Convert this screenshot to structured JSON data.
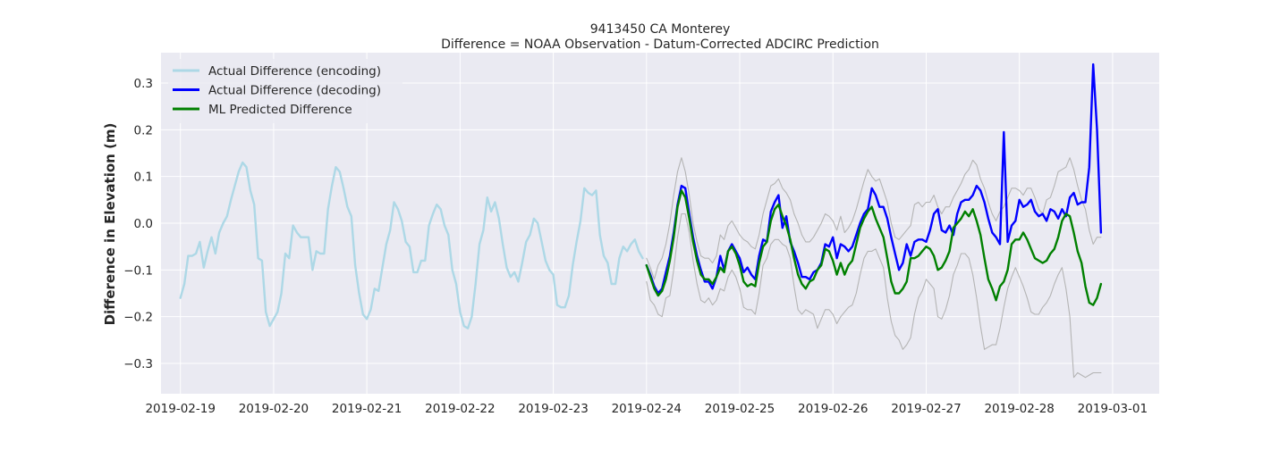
{
  "chart_data": {
    "type": "line",
    "title": "9413450 CA Monterey",
    "subtitle": "Difference = NOAA Observation - Datum-Corrected ADCIRC Prediction",
    "xlabel": "",
    "ylabel": "Difference in Elevation (m)",
    "xlim": [
      "2019-02-18 19:00",
      "2019-03-01 12:00"
    ],
    "ylim": [
      -0.365,
      0.365
    ],
    "grid": true,
    "legend_position": "top-left",
    "x_ticks": [
      "2019-02-19",
      "2019-02-20",
      "2019-02-21",
      "2019-02-22",
      "2019-02-23",
      "2019-02-24",
      "2019-02-25",
      "2019-02-26",
      "2019-02-27",
      "2019-02-28",
      "2019-03-01"
    ],
    "y_ticks": [
      -0.3,
      -0.2,
      -0.1,
      0.0,
      0.1,
      0.2,
      0.3
    ],
    "y_tick_labels": [
      "−0.3",
      "−0.2",
      "−0.1",
      "0.0",
      "0.1",
      "0.2",
      "0.3"
    ],
    "colors": {
      "plot_background": "#eaeaf2",
      "grid": "#ffffff",
      "encoding": "#add8e6",
      "decoding": "#0000ff",
      "predicted": "#008000",
      "bounds": "#b4b4b4"
    },
    "series": [
      {
        "name": "Actual Difference (encoding)",
        "role": "encoding",
        "x_start": "2019-02-19 00:00",
        "step_hours": 1,
        "values": [
          -0.16,
          -0.13,
          -0.07,
          -0.07,
          -0.065,
          -0.04,
          -0.095,
          -0.06,
          -0.03,
          -0.065,
          -0.02,
          0.0,
          0.015,
          0.05,
          0.08,
          0.11,
          0.13,
          0.12,
          0.07,
          0.04,
          -0.075,
          -0.08,
          -0.19,
          -0.22,
          -0.205,
          -0.19,
          -0.15,
          -0.065,
          -0.075,
          -0.005,
          -0.02,
          -0.03,
          -0.03,
          -0.03,
          -0.1,
          -0.06,
          -0.065,
          -0.065,
          0.03,
          0.08,
          0.12,
          0.11,
          0.075,
          0.035,
          0.015,
          -0.09,
          -0.15,
          -0.195,
          -0.205,
          -0.185,
          -0.14,
          -0.145,
          -0.095,
          -0.045,
          -0.015,
          0.045,
          0.03,
          0.005,
          -0.04,
          -0.05,
          -0.105,
          -0.105,
          -0.08,
          -0.08,
          -0.005,
          0.02,
          0.04,
          0.03,
          -0.005,
          -0.025,
          -0.1,
          -0.13,
          -0.19,
          -0.22,
          -0.225,
          -0.2,
          -0.13,
          -0.045,
          -0.015,
          0.055,
          0.025,
          0.045,
          0.01,
          -0.045,
          -0.095,
          -0.115,
          -0.105,
          -0.125,
          -0.085,
          -0.04,
          -0.025,
          0.01,
          0.0,
          -0.04,
          -0.08,
          -0.1,
          -0.11,
          -0.175,
          -0.18,
          -0.18,
          -0.155,
          -0.09,
          -0.04,
          0.005,
          0.075,
          0.065,
          0.06,
          0.07,
          -0.025,
          -0.07,
          -0.085,
          -0.13,
          -0.13,
          -0.075,
          -0.05,
          -0.06,
          -0.045,
          -0.035,
          -0.06,
          -0.075
        ]
      },
      {
        "name": "Actual Difference (decoding)",
        "role": "decoding",
        "x_start": "2019-02-24 00:00",
        "step_hours": 1,
        "values": [
          -0.09,
          -0.11,
          -0.135,
          -0.15,
          -0.14,
          -0.105,
          -0.07,
          -0.02,
          0.04,
          0.08,
          0.075,
          0.02,
          -0.03,
          -0.07,
          -0.1,
          -0.125,
          -0.125,
          -0.14,
          -0.115,
          -0.07,
          -0.1,
          -0.06,
          -0.045,
          -0.06,
          -0.075,
          -0.105,
          -0.095,
          -0.11,
          -0.12,
          -0.07,
          -0.035,
          -0.04,
          0.025,
          0.045,
          0.06,
          -0.01,
          0.015,
          -0.04,
          -0.06,
          -0.085,
          -0.115,
          -0.115,
          -0.12,
          -0.105,
          -0.1,
          -0.085,
          -0.045,
          -0.05,
          -0.03,
          -0.075,
          -0.045,
          -0.05,
          -0.06,
          -0.05,
          -0.025,
          0.0,
          0.02,
          0.03,
          0.075,
          0.06,
          0.035,
          0.035,
          0.01,
          -0.03,
          -0.065,
          -0.1,
          -0.085,
          -0.045,
          -0.07,
          -0.04,
          -0.035,
          -0.035,
          -0.04,
          -0.015,
          0.02,
          0.03,
          -0.015,
          -0.02,
          -0.005,
          -0.025,
          0.02,
          0.045,
          0.05,
          0.05,
          0.06,
          0.08,
          0.07,
          0.045,
          0.01,
          -0.02,
          -0.03,
          -0.045,
          0.195,
          -0.04,
          -0.005,
          0.005,
          0.05,
          0.035,
          0.04,
          0.05,
          0.025,
          0.015,
          0.02,
          0.005,
          0.03,
          0.025,
          0.01,
          0.03,
          0.015,
          0.055,
          0.065,
          0.04,
          0.045,
          0.045,
          0.12,
          0.34,
          0.2,
          -0.02
        ]
      },
      {
        "name": "ML Predicted Difference",
        "role": "predicted",
        "x_start": "2019-02-24 00:00",
        "step_hours": 1,
        "values": [
          -0.09,
          -0.115,
          -0.14,
          -0.155,
          -0.145,
          -0.12,
          -0.08,
          -0.03,
          0.035,
          0.07,
          0.055,
          0.01,
          -0.04,
          -0.08,
          -0.11,
          -0.12,
          -0.12,
          -0.13,
          -0.115,
          -0.095,
          -0.105,
          -0.06,
          -0.05,
          -0.065,
          -0.09,
          -0.125,
          -0.135,
          -0.13,
          -0.135,
          -0.085,
          -0.05,
          -0.04,
          0.005,
          0.03,
          0.04,
          0.015,
          -0.005,
          -0.035,
          -0.075,
          -0.11,
          -0.13,
          -0.14,
          -0.125,
          -0.12,
          -0.1,
          -0.09,
          -0.055,
          -0.06,
          -0.08,
          -0.11,
          -0.085,
          -0.11,
          -0.09,
          -0.08,
          -0.045,
          -0.01,
          0.01,
          0.025,
          0.035,
          0.01,
          -0.01,
          -0.03,
          -0.075,
          -0.125,
          -0.15,
          -0.15,
          -0.14,
          -0.125,
          -0.075,
          -0.075,
          -0.07,
          -0.06,
          -0.05,
          -0.055,
          -0.07,
          -0.1,
          -0.095,
          -0.08,
          -0.06,
          -0.01,
          0.0,
          0.01,
          0.025,
          0.015,
          0.03,
          0.005,
          -0.025,
          -0.075,
          -0.12,
          -0.14,
          -0.165,
          -0.135,
          -0.125,
          -0.1,
          -0.045,
          -0.035,
          -0.035,
          -0.02,
          -0.035,
          -0.055,
          -0.075,
          -0.08,
          -0.085,
          -0.08,
          -0.065,
          -0.055,
          -0.03,
          0.005,
          0.02,
          0.015,
          -0.02,
          -0.06,
          -0.085,
          -0.135,
          -0.17,
          -0.175,
          -0.16,
          -0.13
        ]
      },
      {
        "name": "",
        "role": "bounds",
        "x_start": "2019-02-24 00:00",
        "step_hours": 1,
        "values": [
          -0.125,
          -0.165,
          -0.175,
          -0.195,
          -0.2,
          -0.16,
          -0.155,
          -0.1,
          -0.03,
          0.02,
          0.02,
          -0.02,
          -0.08,
          -0.13,
          -0.165,
          -0.17,
          -0.16,
          -0.175,
          -0.165,
          -0.14,
          -0.145,
          -0.115,
          -0.1,
          -0.115,
          -0.14,
          -0.18,
          -0.185,
          -0.185,
          -0.195,
          -0.15,
          -0.09,
          -0.075,
          -0.045,
          -0.035,
          -0.035,
          -0.045,
          -0.05,
          -0.075,
          -0.135,
          -0.185,
          -0.195,
          -0.185,
          -0.19,
          -0.195,
          -0.225,
          -0.205,
          -0.185,
          -0.185,
          -0.195,
          -0.215,
          -0.2,
          -0.19,
          -0.18,
          -0.175,
          -0.15,
          -0.11,
          -0.075,
          -0.06,
          -0.06,
          -0.055,
          -0.075,
          -0.095,
          -0.16,
          -0.21,
          -0.24,
          -0.25,
          -0.27,
          -0.26,
          -0.245,
          -0.195,
          -0.16,
          -0.145,
          -0.12,
          -0.13,
          -0.14,
          -0.2,
          -0.205,
          -0.185,
          -0.155,
          -0.11,
          -0.09,
          -0.065,
          -0.065,
          -0.075,
          -0.11,
          -0.16,
          -0.22,
          -0.27,
          -0.265,
          -0.26,
          -0.26,
          -0.225,
          -0.18,
          -0.14,
          -0.115,
          -0.095,
          -0.115,
          -0.135,
          -0.16,
          -0.19,
          -0.195,
          -0.195,
          -0.18,
          -0.17,
          -0.155,
          -0.13,
          -0.11,
          -0.095,
          -0.14,
          -0.2,
          -0.33,
          -0.32,
          -0.325,
          -0.33,
          -0.325,
          -0.32,
          -0.32,
          -0.32
        ]
      },
      {
        "name": "",
        "role": "bounds",
        "x_start": "2019-02-24 00:00",
        "step_hours": 1,
        "values": [
          -0.075,
          -0.095,
          -0.12,
          -0.09,
          -0.075,
          -0.045,
          0.0,
          0.06,
          0.11,
          0.14,
          0.11,
          0.06,
          0.0,
          -0.04,
          -0.07,
          -0.075,
          -0.075,
          -0.085,
          -0.07,
          -0.025,
          -0.035,
          -0.005,
          0.005,
          -0.01,
          -0.025,
          -0.035,
          -0.04,
          -0.05,
          -0.055,
          -0.025,
          0.02,
          0.05,
          0.08,
          0.085,
          0.095,
          0.075,
          0.065,
          0.05,
          0.02,
          0.0,
          -0.025,
          -0.04,
          -0.04,
          -0.03,
          -0.015,
          0.0,
          0.02,
          0.015,
          0.005,
          -0.015,
          0.015,
          -0.02,
          -0.01,
          0.005,
          0.03,
          0.06,
          0.09,
          0.115,
          0.1,
          0.09,
          0.095,
          0.07,
          0.045,
          0.0,
          -0.03,
          -0.035,
          -0.025,
          -0.015,
          -0.005,
          0.04,
          0.045,
          0.035,
          0.045,
          0.045,
          0.06,
          0.035,
          0.02,
          0.035,
          0.035,
          0.055,
          0.07,
          0.085,
          0.105,
          0.115,
          0.135,
          0.125,
          0.095,
          0.075,
          0.045,
          0.02,
          0.005,
          0.025,
          0.035,
          0.055,
          0.075,
          0.075,
          0.07,
          0.06,
          0.075,
          0.075,
          0.055,
          0.03,
          0.02,
          0.05,
          0.055,
          0.08,
          0.11,
          0.115,
          0.12,
          0.14,
          0.115,
          0.08,
          0.05,
          0.03,
          -0.015,
          -0.045,
          -0.03,
          -0.03
        ]
      }
    ]
  }
}
